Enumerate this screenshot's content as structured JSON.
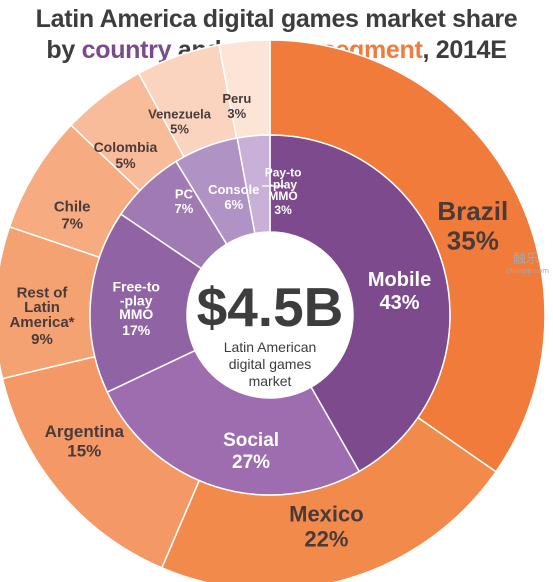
{
  "title": {
    "line1": "Latin America digital games market share",
    "line2_by": "by",
    "line2_country": "country",
    "line2_and": "and",
    "line2_segment": "gaming segment",
    "line2_year": ", 2014E"
  },
  "center": {
    "value": "$4.5B",
    "caption_line1": "Latin American",
    "caption_line2": "digital games",
    "caption_line3": "market"
  },
  "watermark": {
    "cn": "触乐",
    "en": "chuapp.com"
  },
  "colors": {
    "country_segments": [
      "#f07b3a",
      "#f28a4b",
      "#f49866",
      "#f5a273",
      "#f6ab80",
      "#f8bc9b",
      "#fad4bf",
      "#fce5d7"
    ],
    "gaming_segments": [
      "#7d4a8d",
      "#9e6db0",
      "#8f63a4",
      "#a07ab3",
      "#b192c4",
      "#c8b0d6"
    ],
    "center": "#ffffff",
    "text_dark": "#3d3d3d"
  },
  "chart_data": [
    {
      "type": "pie",
      "variant": "donut-outer",
      "title": "Latin America digital games market share by country and gaming segment, 2014E",
      "series_label": "country",
      "categories": [
        "Brazil",
        "Mexico",
        "Argentina",
        "Rest of Latin America*",
        "Chile",
        "Colombia",
        "Venezuela",
        "Peru"
      ],
      "display_names": [
        "Brazil",
        "Mexico",
        "Argentina",
        "Rest of\nLatin\nAmerica*",
        "Chile",
        "Colombia",
        "Venezuela",
        "Peru"
      ],
      "values": [
        35,
        22,
        15,
        9,
        7,
        5,
        5,
        3
      ],
      "value_labels": [
        "35%",
        "22%",
        "15%",
        "9%",
        "7%",
        "5%",
        "5%",
        "3%"
      ]
    },
    {
      "type": "pie",
      "variant": "donut-inner",
      "series_label": "gaming segment",
      "categories": [
        "Mobile",
        "Social",
        "Free-to-play MMO",
        "PC",
        "Console",
        "Pay-to-play MMO"
      ],
      "display_names": [
        "Mobile",
        "Social",
        "Free-to\n-play\nMMO",
        "PC",
        "Console",
        "Pay-to\n-play\nMMO"
      ],
      "values": [
        43,
        27,
        17,
        7,
        6,
        3
      ],
      "value_labels": [
        "43%",
        "27%",
        "17%",
        "7%",
        "6%",
        "3%"
      ]
    }
  ]
}
